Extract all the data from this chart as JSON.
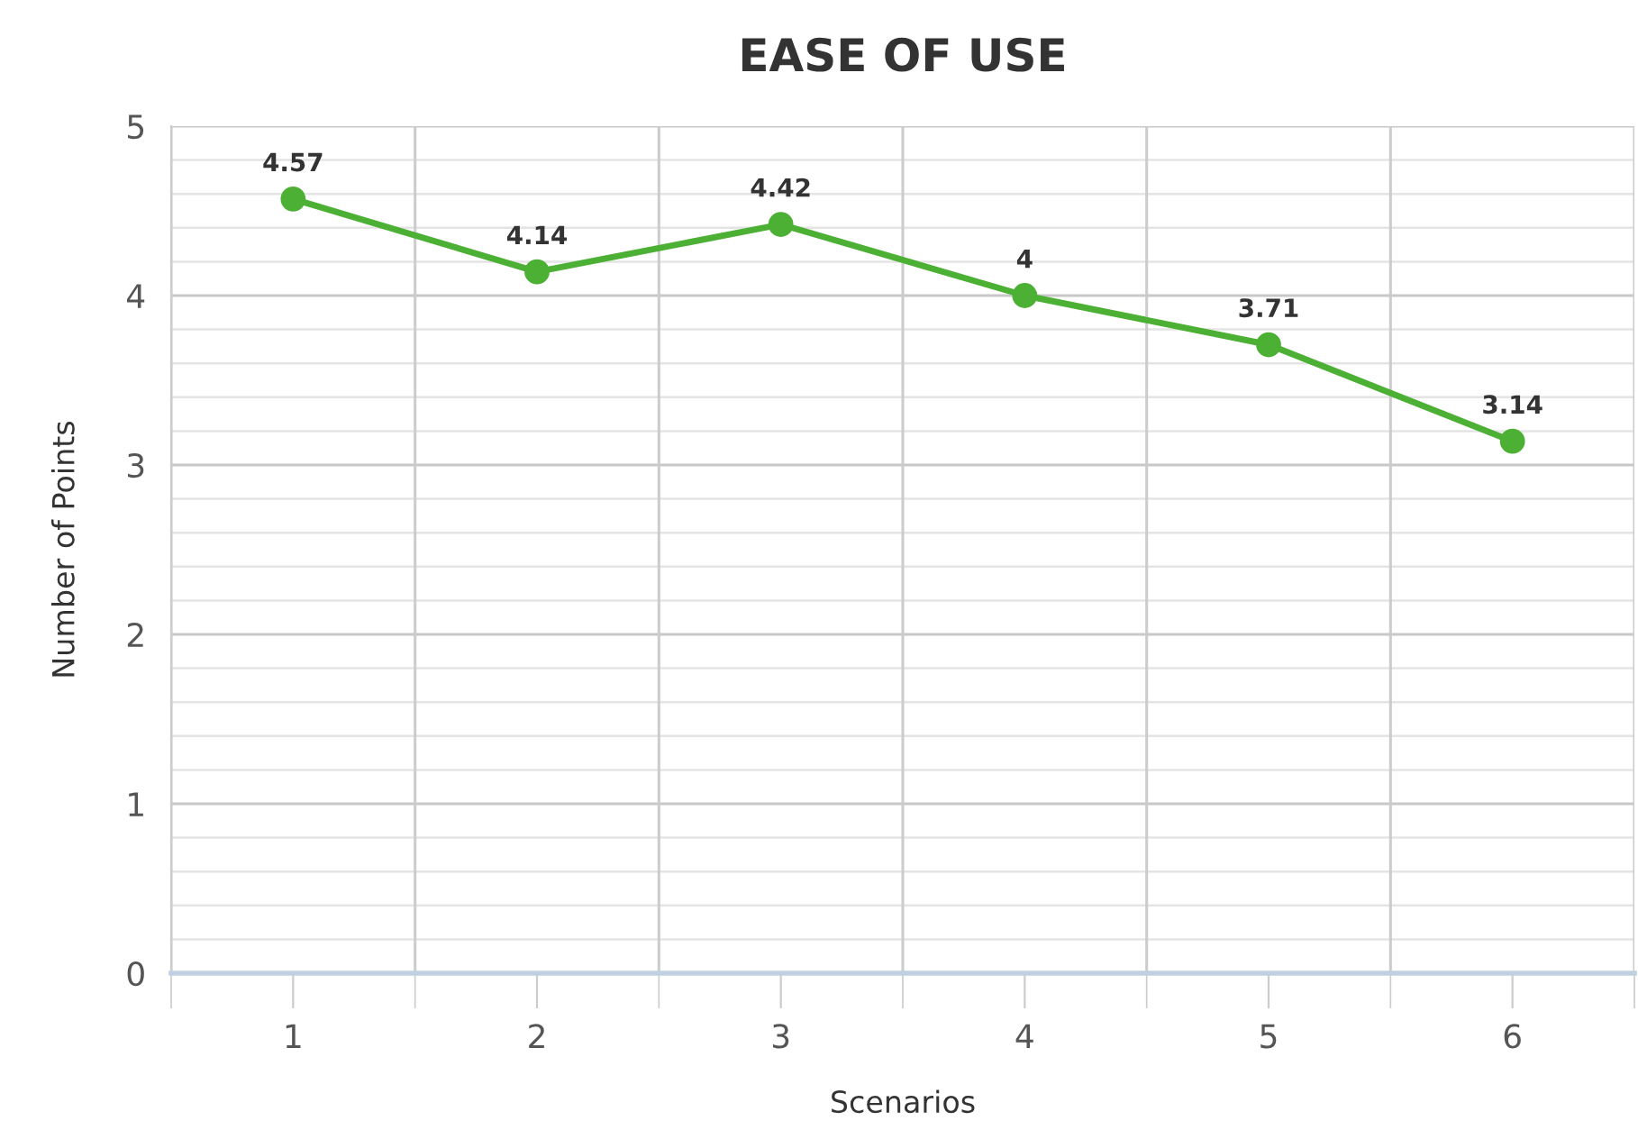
{
  "chart_data": {
    "type": "line",
    "title": "EASE OF USE",
    "xlabel": "Scenarios",
    "ylabel": "Number of Points",
    "categories": [
      "1",
      "2",
      "3",
      "4",
      "5",
      "6"
    ],
    "series": [
      {
        "color": "#4cb034",
        "values": [
          4.57,
          4.14,
          4.42,
          4,
          3.71,
          3.14
        ]
      }
    ],
    "ylim": [
      0,
      5
    ],
    "yticks": [
      0,
      1,
      2,
      3,
      4,
      5
    ],
    "grid": true,
    "marker": "circle",
    "line_style": "solid",
    "data_labels": true
  }
}
